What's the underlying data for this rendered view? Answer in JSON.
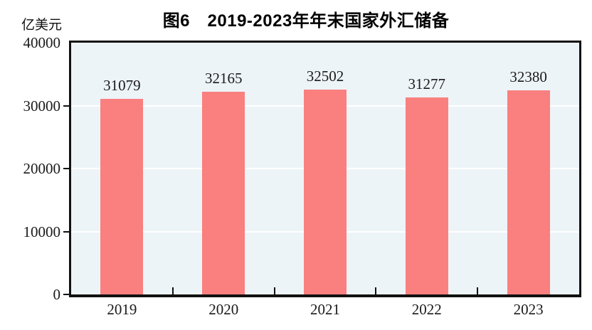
{
  "chart_data": {
    "type": "bar",
    "title": "图6　2019-2023年年末国家外汇储备",
    "unit_label": "亿美元",
    "categories": [
      "2019",
      "2020",
      "2021",
      "2022",
      "2023"
    ],
    "values": [
      31079,
      32165,
      32502,
      31277,
      32380
    ],
    "xlabel": "",
    "ylabel": "亿美元",
    "ylim": [
      0,
      40000
    ],
    "yticks": [
      0,
      10000,
      20000,
      30000,
      40000
    ],
    "grid": "horizontal-white",
    "legend": "none",
    "value_labels_shown": true,
    "colors": {
      "bar": "#f9807f",
      "plot_background": "#edf4f8",
      "gridline": "#ffffff",
      "axis": "#111111",
      "text": "#1a1a1a",
      "title_text": "#000000",
      "page_background": "#ffffff"
    }
  }
}
